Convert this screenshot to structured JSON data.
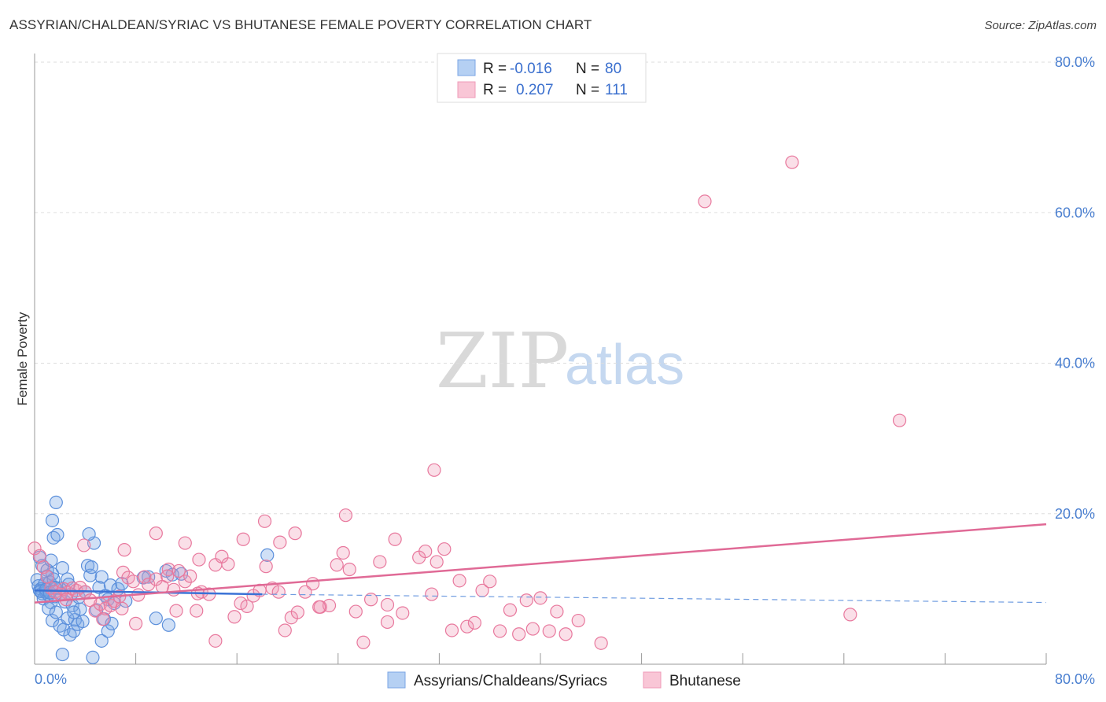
{
  "title": "ASSYRIAN/CHALDEAN/SYRIAC VS BHUTANESE FEMALE POVERTY CORRELATION CHART",
  "source": "Source: ZipAtlas.com",
  "watermark": {
    "zip": "ZIP",
    "atlas": "atlas"
  },
  "legend": {
    "r_label": "R =",
    "n_label": "N =",
    "rows": [
      {
        "name": "Assyrians/Chaldeans/Syriacs",
        "r": "-0.016",
        "n": "80",
        "color": "#6fa0e0"
      },
      {
        "name": "Bhutanese",
        "r": "0.207",
        "n": "111",
        "color": "#f08fb0"
      }
    ]
  },
  "chart_data": {
    "type": "scatter",
    "title": "ASSYRIAN/CHALDEAN/SYRIAC VS BHUTANESE FEMALE POVERTY CORRELATION CHART",
    "xlabel": "",
    "ylabel": "Female Poverty",
    "xlim": [
      0,
      80
    ],
    "ylim": [
      0,
      80
    ],
    "x_tick_labels": [
      "0.0%",
      "80.0%"
    ],
    "y_tick_labels": [
      "20.0%",
      "40.0%",
      "60.0%",
      "80.0%"
    ],
    "y_ticks": [
      20,
      40,
      60,
      80
    ],
    "x_minor_ticks": [
      8,
      16,
      24,
      32,
      40,
      48,
      56,
      64,
      72,
      80
    ],
    "grid": true,
    "series": [
      {
        "name": "Assyrians/Chaldeans/Syriacs",
        "color": "#5b8fdb",
        "fill": "rgba(120,165,230,0.35)",
        "trend": {
          "x0": 0,
          "y0": 9.8,
          "x1": 18,
          "y1": 9.3,
          "dash_to_x": 80,
          "dash_to_y": 8.2
        },
        "points": [
          [
            0.2,
            11.2
          ],
          [
            0.3,
            10.4
          ],
          [
            0.4,
            9.8
          ],
          [
            0.5,
            10.0
          ],
          [
            0.6,
            9.4
          ],
          [
            0.7,
            8.7
          ],
          [
            0.8,
            10.7
          ],
          [
            0.9,
            9.6
          ],
          [
            1.0,
            11.7
          ],
          [
            1.1,
            9.2
          ],
          [
            1.2,
            10.9
          ],
          [
            1.3,
            8.2
          ],
          [
            1.4,
            12.0
          ],
          [
            1.5,
            11.3
          ],
          [
            1.6,
            9.0
          ],
          [
            1.7,
            10.1
          ],
          [
            0.4,
            14.2
          ],
          [
            0.6,
            13.1
          ],
          [
            1.0,
            12.5
          ],
          [
            1.3,
            13.8
          ],
          [
            1.5,
            16.8
          ],
          [
            1.4,
            19.1
          ],
          [
            1.7,
            21.5
          ],
          [
            1.8,
            17.2
          ],
          [
            2.0,
            10.1
          ],
          [
            2.1,
            9.4
          ],
          [
            2.2,
            12.8
          ],
          [
            2.4,
            8.3
          ],
          [
            2.6,
            11.3
          ],
          [
            2.7,
            10.6
          ],
          [
            2.9,
            9.3
          ],
          [
            3.0,
            7.8
          ],
          [
            1.1,
            7.4
          ],
          [
            1.4,
            5.8
          ],
          [
            1.7,
            6.9
          ],
          [
            2.0,
            5.1
          ],
          [
            2.3,
            4.6
          ],
          [
            2.6,
            6.1
          ],
          [
            2.8,
            3.9
          ],
          [
            3.1,
            4.4
          ],
          [
            3.2,
            5.9
          ],
          [
            3.4,
            5.3
          ],
          [
            3.6,
            7.3
          ],
          [
            3.8,
            5.7
          ],
          [
            2.2,
            1.3
          ],
          [
            4.6,
            0.9
          ],
          [
            5.3,
            3.1
          ],
          [
            5.8,
            4.4
          ],
          [
            4.2,
            13.1
          ],
          [
            4.4,
            11.8
          ],
          [
            4.5,
            12.9
          ],
          [
            4.7,
            16.1
          ],
          [
            4.3,
            17.3
          ],
          [
            5.1,
            10.2
          ],
          [
            5.3,
            11.6
          ],
          [
            5.6,
            9.1
          ],
          [
            5.8,
            8.6
          ],
          [
            6.0,
            10.5
          ],
          [
            6.3,
            8.1
          ],
          [
            6.6,
            10.0
          ],
          [
            6.9,
            10.7
          ],
          [
            7.2,
            8.4
          ],
          [
            3.5,
            8.9
          ],
          [
            4.0,
            9.6
          ],
          [
            3.1,
            6.9
          ],
          [
            4.9,
            7.2
          ],
          [
            5.5,
            6.0
          ],
          [
            6.1,
            5.4
          ],
          [
            9.0,
            11.6
          ],
          [
            9.6,
            6.1
          ],
          [
            10.6,
            5.2
          ],
          [
            11.6,
            12.0
          ],
          [
            10.4,
            12.4
          ],
          [
            10.9,
            11.9
          ],
          [
            8.6,
            11.5
          ],
          [
            18.4,
            14.5
          ],
          [
            0.5,
            9.7
          ],
          [
            0.9,
            9.9
          ],
          [
            1.2,
            9.5
          ],
          [
            1.6,
            10.2
          ]
        ]
      },
      {
        "name": "Bhutanese",
        "color": "#e8789d",
        "fill": "rgba(240,150,180,0.30)",
        "trend": {
          "x0": 0,
          "y0": 8.2,
          "x1": 80,
          "y1": 18.6
        },
        "points": [
          [
            0.0,
            15.4
          ],
          [
            0.4,
            14.4
          ],
          [
            0.7,
            12.9
          ],
          [
            1.0,
            11.6
          ],
          [
            1.3,
            10.1
          ],
          [
            1.6,
            9.6
          ],
          [
            2.0,
            9.3
          ],
          [
            2.3,
            10.0
          ],
          [
            2.6,
            9.5
          ],
          [
            3.0,
            10.1
          ],
          [
            3.3,
            9.8
          ],
          [
            3.6,
            10.2
          ],
          [
            4.0,
            9.6
          ],
          [
            4.4,
            8.5
          ],
          [
            4.8,
            7.1
          ],
          [
            5.2,
            8.0
          ],
          [
            5.6,
            7.4
          ],
          [
            6.0,
            7.8
          ],
          [
            6.3,
            8.4
          ],
          [
            6.7,
            9.0
          ],
          [
            7.0,
            12.2
          ],
          [
            7.4,
            11.5
          ],
          [
            7.8,
            11.0
          ],
          [
            8.2,
            9.2
          ],
          [
            8.7,
            11.6
          ],
          [
            9.0,
            10.6
          ],
          [
            9.6,
            11.3
          ],
          [
            10.1,
            10.3
          ],
          [
            10.6,
            12.6
          ],
          [
            11.0,
            9.9
          ],
          [
            11.4,
            12.4
          ],
          [
            11.9,
            11.0
          ],
          [
            12.3,
            11.7
          ],
          [
            12.8,
            7.1
          ],
          [
            13.2,
            9.6
          ],
          [
            13.8,
            9.3
          ],
          [
            14.3,
            13.2
          ],
          [
            14.8,
            14.3
          ],
          [
            15.3,
            13.3
          ],
          [
            15.8,
            6.3
          ],
          [
            16.3,
            8.1
          ],
          [
            16.8,
            7.7
          ],
          [
            17.3,
            9.1
          ],
          [
            17.8,
            9.8
          ],
          [
            18.3,
            13.0
          ],
          [
            18.8,
            10.1
          ],
          [
            19.3,
            9.6
          ],
          [
            19.8,
            4.5
          ],
          [
            20.3,
            6.2
          ],
          [
            20.8,
            6.9
          ],
          [
            21.4,
            9.6
          ],
          [
            22.0,
            10.7
          ],
          [
            22.6,
            7.6
          ],
          [
            23.3,
            7.8
          ],
          [
            23.9,
            13.2
          ],
          [
            24.4,
            14.8
          ],
          [
            24.9,
            12.6
          ],
          [
            25.4,
            7.0
          ],
          [
            26.0,
            2.9
          ],
          [
            26.6,
            8.6
          ],
          [
            27.3,
            13.6
          ],
          [
            27.9,
            7.9
          ],
          [
            28.5,
            16.6
          ],
          [
            29.1,
            6.8
          ],
          [
            30.4,
            14.2
          ],
          [
            30.9,
            15.0
          ],
          [
            31.4,
            9.3
          ],
          [
            31.8,
            13.6
          ],
          [
            32.4,
            15.3
          ],
          [
            33.0,
            4.5
          ],
          [
            33.6,
            11.1
          ],
          [
            34.2,
            5.0
          ],
          [
            34.8,
            5.5
          ],
          [
            35.4,
            9.8
          ],
          [
            36.0,
            11.0
          ],
          [
            36.8,
            4.4
          ],
          [
            37.6,
            7.2
          ],
          [
            38.3,
            4.0
          ],
          [
            38.9,
            8.5
          ],
          [
            39.4,
            4.7
          ],
          [
            40.0,
            8.8
          ],
          [
            40.7,
            4.4
          ],
          [
            41.3,
            7.0
          ],
          [
            42.0,
            4.0
          ],
          [
            43.0,
            5.8
          ],
          [
            44.8,
            2.8
          ],
          [
            9.6,
            17.4
          ],
          [
            11.9,
            16.1
          ],
          [
            16.5,
            16.6
          ],
          [
            18.2,
            19.0
          ],
          [
            19.4,
            16.2
          ],
          [
            20.6,
            17.4
          ],
          [
            24.6,
            19.8
          ],
          [
            31.6,
            25.8
          ],
          [
            7.1,
            15.2
          ],
          [
            3.9,
            15.8
          ],
          [
            53.0,
            61.5
          ],
          [
            59.9,
            66.7
          ],
          [
            68.4,
            32.4
          ],
          [
            64.5,
            6.6
          ],
          [
            2.5,
            8.6
          ],
          [
            5.4,
            6.0
          ],
          [
            6.9,
            7.4
          ],
          [
            8.0,
            5.4
          ],
          [
            14.3,
            3.1
          ],
          [
            12.9,
            9.4
          ],
          [
            22.5,
            7.6
          ],
          [
            27.9,
            5.6
          ],
          [
            10.5,
            11.7
          ],
          [
            11.2,
            7.1
          ],
          [
            13.0,
            13.9
          ]
        ]
      }
    ]
  }
}
